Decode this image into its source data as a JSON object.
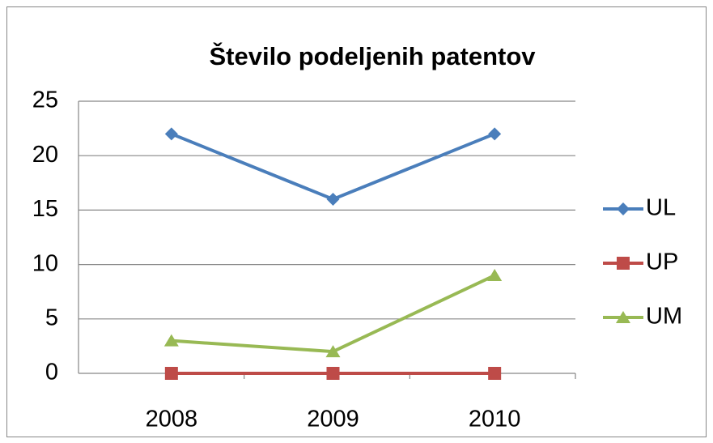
{
  "chart_data": {
    "type": "line",
    "title": "Število podeljenih patentov",
    "categories": [
      "2008",
      "2009",
      "2010"
    ],
    "series": [
      {
        "name": "UL",
        "color": "#4a7ebb",
        "marker": "diamond",
        "values": [
          22,
          16,
          22
        ]
      },
      {
        "name": "UP",
        "color": "#be4b48",
        "marker": "square",
        "values": [
          0,
          0,
          0
        ]
      },
      {
        "name": "UM",
        "color": "#98b954",
        "marker": "triangle",
        "values": [
          3,
          2,
          9
        ]
      }
    ],
    "ylim": [
      0,
      25
    ],
    "yticks": [
      0,
      5,
      10,
      15,
      20,
      25
    ],
    "grid": true,
    "legend": "right"
  }
}
